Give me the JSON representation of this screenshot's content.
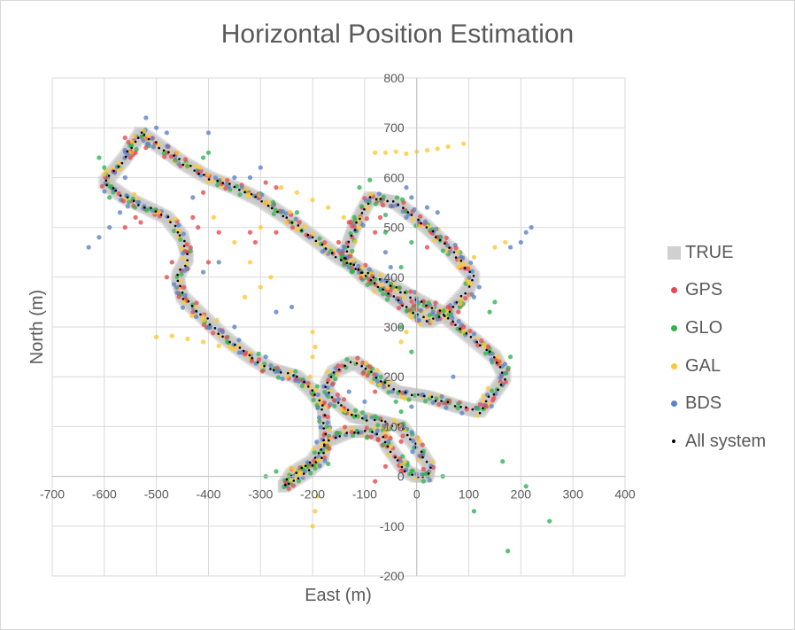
{
  "chart_data": {
    "type": "scatter",
    "title": "Horizontal Position Estimation",
    "xlabel": "East (m)",
    "ylabel": "North (m)",
    "xlim": [
      -700,
      400
    ],
    "ylim": [
      -200,
      800
    ],
    "xticks": [
      "-700",
      "-600",
      "-500",
      "-400",
      "-300",
      "-200",
      "-100",
      "0",
      "100",
      "200",
      "300",
      "400"
    ],
    "yticks": [
      "-200",
      "-100",
      "0",
      "100",
      "200",
      "300",
      "400",
      "500",
      "600",
      "700",
      "800"
    ],
    "grid": true,
    "legend_position": "right",
    "series": [
      {
        "name": "TRUE",
        "color": "#c8c8c8",
        "marker": "square"
      },
      {
        "name": "GPS",
        "color": "#e8474b",
        "marker": "circle"
      },
      {
        "name": "GLO",
        "color": "#2fb44f",
        "marker": "circle"
      },
      {
        "name": "GAL",
        "color": "#ffc832",
        "marker": "circle"
      },
      {
        "name": "BDS",
        "color": "#5b82c8",
        "marker": "circle"
      },
      {
        "name": "All system",
        "color": "#000000",
        "marker": "small-dot"
      }
    ],
    "track": [
      [
        -255,
        -20
      ],
      [
        -240,
        5
      ],
      [
        -200,
        30
      ],
      [
        -175,
        70
      ],
      [
        -130,
        90
      ],
      [
        -90,
        90
      ],
      [
        -65,
        80
      ],
      [
        -55,
        60
      ],
      [
        -20,
        10
      ],
      [
        0,
        0
      ],
      [
        20,
        0
      ],
      [
        25,
        20
      ],
      [
        0,
        60
      ],
      [
        -30,
        100
      ],
      [
        -70,
        110
      ],
      [
        -120,
        120
      ],
      [
        -165,
        160
      ],
      [
        -175,
        180
      ],
      [
        -160,
        210
      ],
      [
        -120,
        230
      ],
      [
        -80,
        200
      ],
      [
        -40,
        170
      ],
      [
        20,
        160
      ],
      [
        80,
        140
      ],
      [
        120,
        130
      ],
      [
        150,
        170
      ],
      [
        170,
        200
      ],
      [
        150,
        240
      ],
      [
        80,
        300
      ],
      [
        45,
        330
      ],
      [
        -10,
        360
      ],
      [
        -60,
        390
      ],
      [
        -100,
        410
      ],
      [
        -150,
        440
      ],
      [
        -200,
        480
      ],
      [
        -250,
        520
      ],
      [
        -300,
        555
      ],
      [
        -350,
        580
      ],
      [
        -400,
        600
      ],
      [
        -450,
        630
      ],
      [
        -490,
        660
      ],
      [
        -530,
        690
      ],
      [
        -560,
        640
      ],
      [
        -600,
        590
      ],
      [
        -560,
        560
      ],
      [
        -520,
        540
      ],
      [
        -480,
        520
      ],
      [
        -450,
        480
      ],
      [
        -440,
        440
      ],
      [
        -460,
        400
      ],
      [
        -450,
        360
      ],
      [
        -410,
        320
      ],
      [
        -370,
        280
      ],
      [
        -320,
        240
      ],
      [
        -280,
        215
      ],
      [
        -230,
        200
      ],
      [
        -200,
        170
      ],
      [
        -180,
        140
      ],
      [
        -175,
        80
      ],
      [
        -180,
        40
      ],
      [
        -210,
        10
      ],
      [
        -240,
        -10
      ],
      [
        -255,
        -20
      ]
    ],
    "track_inner": [
      [
        -140,
        440
      ],
      [
        -120,
        500
      ],
      [
        -90,
        560
      ],
      [
        -40,
        550
      ],
      [
        20,
        500
      ],
      [
        60,
        460
      ],
      [
        110,
        400
      ],
      [
        95,
        370
      ],
      [
        60,
        330
      ],
      [
        20,
        310
      ],
      [
        -20,
        340
      ],
      [
        -60,
        370
      ],
      [
        -100,
        400
      ],
      [
        -140,
        440
      ]
    ],
    "gal_outliers": [
      [
        -80,
        650
      ],
      [
        -60,
        650
      ],
      [
        -40,
        652
      ],
      [
        -20,
        648
      ],
      [
        0,
        652
      ],
      [
        20,
        655
      ],
      [
        40,
        658
      ],
      [
        60,
        662
      ],
      [
        90,
        668
      ],
      [
        -500,
        280
      ],
      [
        -470,
        282
      ],
      [
        -440,
        276
      ],
      [
        -410,
        270
      ],
      [
        -380,
        262
      ],
      [
        -350,
        255
      ],
      [
        -320,
        248
      ],
      [
        -300,
        380
      ],
      [
        -330,
        360
      ],
      [
        -280,
        400
      ],
      [
        -320,
        430
      ],
      [
        -350,
        470
      ],
      [
        -390,
        520
      ],
      [
        -260,
        580
      ],
      [
        -230,
        570
      ],
      [
        -200,
        555
      ],
      [
        -170,
        540
      ],
      [
        -140,
        520
      ],
      [
        -110,
        500
      ],
      [
        -200,
        -100
      ],
      [
        -195,
        -70
      ],
      [
        -190,
        -40
      ],
      [
        -205,
        200
      ],
      [
        -200,
        240
      ],
      [
        -195,
        260
      ],
      [
        -200,
        290
      ],
      [
        -30,
        270
      ],
      [
        -20,
        290
      ],
      [
        -10,
        320
      ],
      [
        150,
        460
      ],
      [
        170,
        470
      ],
      [
        110,
        440
      ],
      [
        80,
        420
      ],
      [
        -60,
        90
      ],
      [
        -50,
        60
      ],
      [
        -300,
        500
      ],
      [
        -250,
        510
      ],
      [
        -230,
        495
      ]
    ],
    "glo_outliers": [
      [
        210,
        -20
      ],
      [
        255,
        -90
      ],
      [
        175,
        -150
      ],
      [
        110,
        -70
      ],
      [
        165,
        30
      ],
      [
        140,
        250
      ],
      [
        180,
        240
      ],
      [
        140,
        330
      ],
      [
        150,
        350
      ],
      [
        -30,
        130
      ],
      [
        -40,
        150
      ],
      [
        -80,
        120
      ],
      [
        -270,
        10
      ],
      [
        -290,
        0
      ],
      [
        -210,
        20
      ],
      [
        -170,
        25
      ],
      [
        -110,
        580
      ],
      [
        -90,
        595
      ],
      [
        -60,
        525
      ],
      [
        -10,
        470
      ],
      [
        -60,
        490
      ],
      [
        -30,
        420
      ],
      [
        -240,
        510
      ],
      [
        -230,
        530
      ],
      [
        -600,
        620
      ],
      [
        -610,
        640
      ],
      [
        -590,
        560
      ],
      [
        -410,
        640
      ],
      [
        -400,
        650
      ],
      [
        -30,
        300
      ],
      [
        -10,
        250
      ],
      [
        50,
        0
      ],
      [
        -120,
        120
      ]
    ],
    "gps_outliers": [
      [
        -80,
        -10
      ],
      [
        -60,
        20
      ],
      [
        -310,
        470
      ],
      [
        -320,
        490
      ],
      [
        -270,
        490
      ],
      [
        -430,
        520
      ],
      [
        -420,
        500
      ],
      [
        -380,
        490
      ],
      [
        -400,
        430
      ],
      [
        -470,
        430
      ],
      [
        -480,
        400
      ],
      [
        -440,
        450
      ],
      [
        -540,
        520
      ],
      [
        -560,
        500
      ],
      [
        -530,
        510
      ],
      [
        -550,
        640
      ],
      [
        -540,
        650
      ],
      [
        -520,
        660
      ],
      [
        -560,
        680
      ],
      [
        -410,
        570
      ],
      [
        -420,
        610
      ],
      [
        -130,
        510
      ],
      [
        -150,
        470
      ],
      [
        -80,
        490
      ],
      [
        -70,
        520
      ],
      [
        20,
        460
      ],
      [
        40,
        480
      ],
      [
        -80,
        170
      ],
      [
        -90,
        220
      ],
      [
        -30,
        70
      ],
      [
        -60,
        80
      ],
      [
        60,
        340
      ],
      [
        80,
        330
      ],
      [
        90,
        300
      ],
      [
        -290,
        590
      ],
      [
        -270,
        580
      ]
    ],
    "bds_outliers": [
      [
        -630,
        460
      ],
      [
        -610,
        480
      ],
      [
        -590,
        500
      ],
      [
        -570,
        530
      ],
      [
        220,
        500
      ],
      [
        210,
        490
      ],
      [
        200,
        470
      ],
      [
        180,
        460
      ],
      [
        -20,
        580
      ],
      [
        -10,
        560
      ],
      [
        -300,
        620
      ],
      [
        -320,
        600
      ],
      [
        -350,
        600
      ],
      [
        -400,
        690
      ],
      [
        -430,
        560
      ],
      [
        -410,
        410
      ],
      [
        -380,
        430
      ],
      [
        -270,
        330
      ],
      [
        -240,
        340
      ],
      [
        -60,
        450
      ],
      [
        -50,
        420
      ],
      [
        40,
        530
      ],
      [
        20,
        540
      ],
      [
        -20,
        520
      ],
      [
        -10,
        140
      ],
      [
        -20,
        170
      ],
      [
        70,
        200
      ],
      [
        -130,
        170
      ],
      [
        -100,
        150
      ],
      [
        -560,
        600
      ],
      [
        -580,
        610
      ],
      [
        -520,
        720
      ],
      [
        -500,
        700
      ],
      [
        -480,
        690
      ],
      [
        120,
        380
      ],
      [
        110,
        360
      ],
      [
        -290,
        240
      ],
      [
        -350,
        300
      ]
    ]
  }
}
